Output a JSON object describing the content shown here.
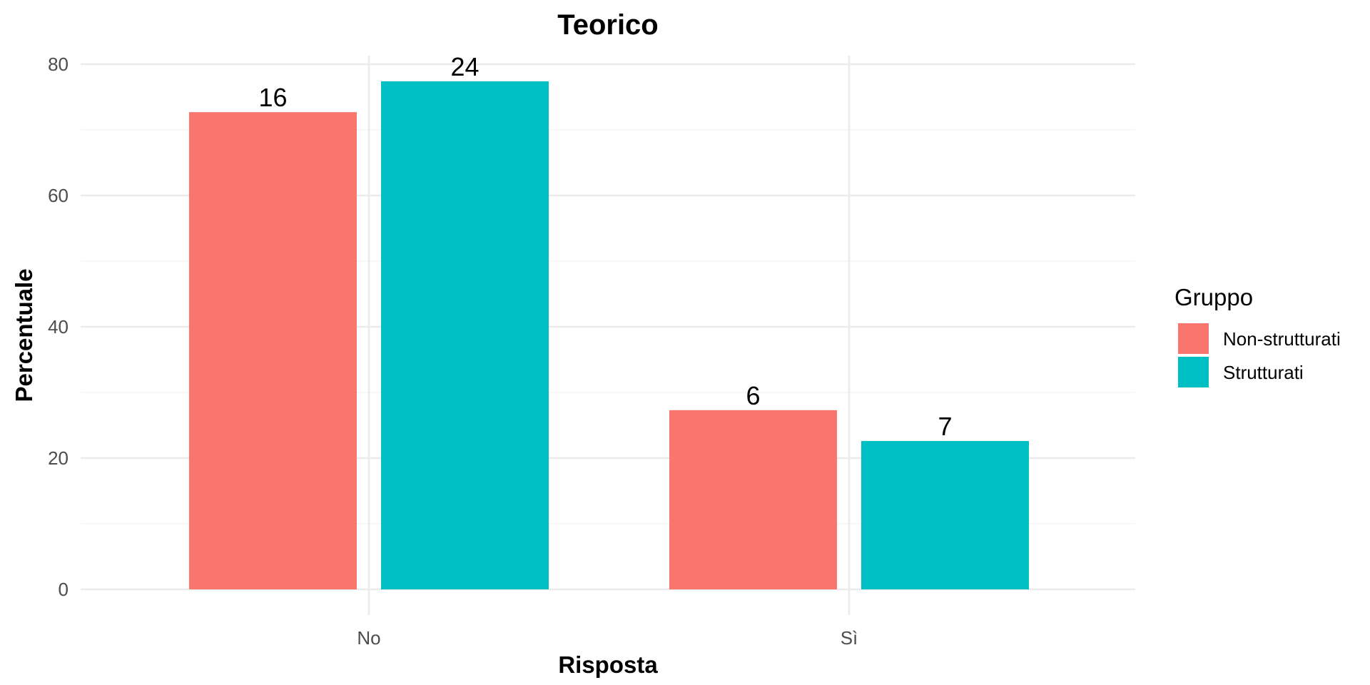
{
  "chart_data": {
    "type": "bar",
    "title": "Teorico",
    "xlabel": "Risposta",
    "ylabel": "Percentuale",
    "categories": [
      "No",
      "Sì"
    ],
    "series": [
      {
        "name": "Non-strutturati",
        "color": "#F8766D",
        "values": [
          72.7,
          27.3
        ],
        "labels": [
          "16",
          "6"
        ]
      },
      {
        "name": "Strutturati",
        "color": "#00BFC4",
        "values": [
          77.4,
          22.6
        ],
        "labels": [
          "24",
          "7"
        ]
      }
    ],
    "ylim": [
      0,
      80
    ],
    "yticks": [
      "0",
      "20",
      "40",
      "60",
      "80"
    ],
    "grid": true,
    "legend": {
      "title": "Gruppo",
      "position": "right"
    }
  }
}
